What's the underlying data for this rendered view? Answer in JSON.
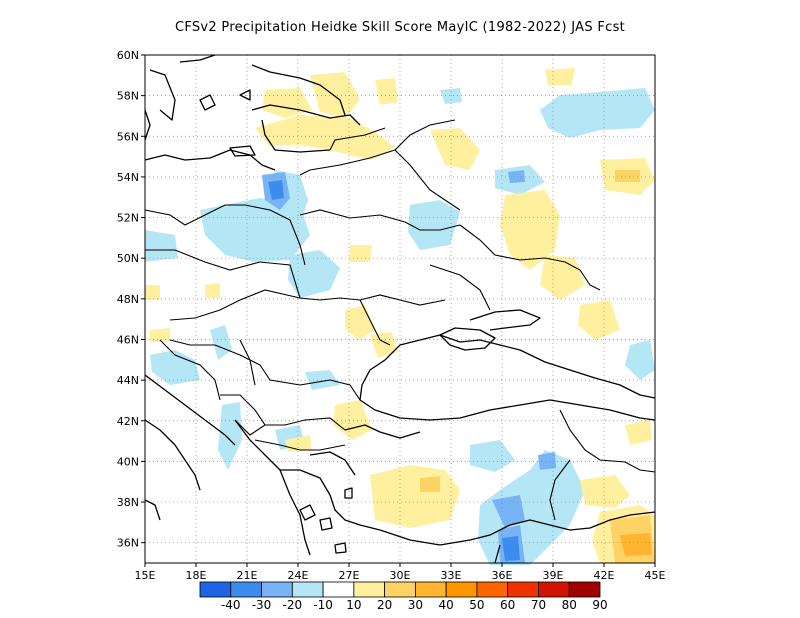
{
  "title": "CFSv2  Precipitation Heidke Skill Score MayIC (1982-2022) JAS Fcst",
  "map": {
    "lon_range": [
      15,
      45
    ],
    "lat_range": [
      35,
      60
    ],
    "lon_ticks": [
      "15E",
      "18E",
      "21E",
      "24E",
      "27E",
      "30E",
      "33E",
      "36E",
      "39E",
      "42E",
      "45E"
    ],
    "lat_ticks": [
      "36N",
      "38N",
      "40N",
      "42N",
      "44N",
      "46N",
      "48N",
      "50N",
      "52N",
      "54N",
      "56N",
      "58N",
      "60N"
    ],
    "grid": "dotted"
  },
  "colorbar": {
    "labels": [
      "-40",
      "-30",
      "-20",
      "-10",
      "10",
      "20",
      "30",
      "40",
      "50",
      "60",
      "70",
      "80",
      "90"
    ],
    "colors": [
      "#1e64e6",
      "#3c8cf0",
      "#78b4f5",
      "#b4e6f5",
      "#ffffff",
      "#fff0a0",
      "#ffd264",
      "#ffb432",
      "#ff9600",
      "#ff6400",
      "#f03200",
      "#d21400",
      "#a00000"
    ]
  },
  "colors": {
    "light_blue": "#b4e6f5",
    "mid_blue": "#78b4f5",
    "dark_blue": "#3c8cf0",
    "pale_yellow": "#fff0a0",
    "yellow": "#ffd264",
    "orange": "#ffb432"
  }
}
